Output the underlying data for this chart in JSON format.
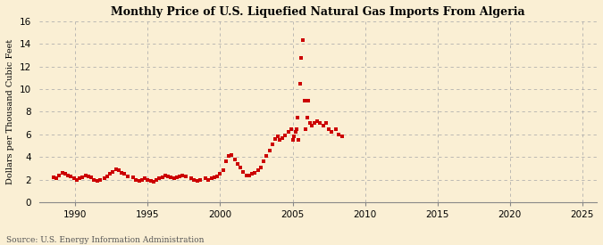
{
  "title": "Monthly Price of U.S. Liquefied Natural Gas Imports From Algeria",
  "ylabel": "Dollars per Thousand Cubic Feet",
  "source": "Source: U.S. Energy Information Administration",
  "background_color": "#faefd4",
  "dot_color": "#cc0000",
  "xlim": [
    1987.5,
    2026
  ],
  "ylim": [
    0,
    16
  ],
  "xticks": [
    1990,
    1995,
    2000,
    2005,
    2010,
    2015,
    2020,
    2025
  ],
  "yticks": [
    0,
    2,
    4,
    6,
    8,
    10,
    12,
    14,
    16
  ],
  "data_points": [
    [
      1988.5,
      2.2
    ],
    [
      1988.7,
      2.1
    ],
    [
      1988.9,
      2.4
    ],
    [
      1989.1,
      2.6
    ],
    [
      1989.3,
      2.5
    ],
    [
      1989.5,
      2.4
    ],
    [
      1989.7,
      2.3
    ],
    [
      1989.9,
      2.1
    ],
    [
      1990.1,
      2.0
    ],
    [
      1990.3,
      2.1
    ],
    [
      1990.5,
      2.2
    ],
    [
      1990.7,
      2.4
    ],
    [
      1990.9,
      2.3
    ],
    [
      1991.1,
      2.2
    ],
    [
      1991.3,
      2.0
    ],
    [
      1991.5,
      1.9
    ],
    [
      1991.7,
      2.0
    ],
    [
      1992.0,
      2.1
    ],
    [
      1992.2,
      2.3
    ],
    [
      1992.4,
      2.5
    ],
    [
      1992.6,
      2.7
    ],
    [
      1992.8,
      2.9
    ],
    [
      1993.0,
      2.8
    ],
    [
      1993.2,
      2.6
    ],
    [
      1993.4,
      2.5
    ],
    [
      1993.6,
      2.3
    ],
    [
      1994.0,
      2.2
    ],
    [
      1994.2,
      2.0
    ],
    [
      1994.4,
      1.9
    ],
    [
      1994.6,
      2.0
    ],
    [
      1994.8,
      2.1
    ],
    [
      1995.0,
      2.0
    ],
    [
      1995.2,
      1.9
    ],
    [
      1995.4,
      1.85
    ],
    [
      1995.6,
      2.0
    ],
    [
      1995.8,
      2.1
    ],
    [
      1996.0,
      2.2
    ],
    [
      1996.2,
      2.4
    ],
    [
      1996.4,
      2.3
    ],
    [
      1996.6,
      2.2
    ],
    [
      1996.8,
      2.1
    ],
    [
      1997.0,
      2.2
    ],
    [
      1997.2,
      2.3
    ],
    [
      1997.4,
      2.4
    ],
    [
      1997.6,
      2.3
    ],
    [
      1998.0,
      2.1
    ],
    [
      1998.2,
      2.0
    ],
    [
      1998.4,
      1.9
    ],
    [
      1998.6,
      2.0
    ],
    [
      1999.0,
      2.1
    ],
    [
      1999.2,
      2.0
    ],
    [
      1999.4,
      2.1
    ],
    [
      1999.6,
      2.2
    ],
    [
      1999.8,
      2.3
    ],
    [
      2000.0,
      2.5
    ],
    [
      2000.2,
      2.8
    ],
    [
      2000.4,
      3.6
    ],
    [
      2000.6,
      4.1
    ],
    [
      2000.8,
      4.2
    ],
    [
      2001.0,
      3.8
    ],
    [
      2001.2,
      3.4
    ],
    [
      2001.4,
      3.1
    ],
    [
      2001.6,
      2.7
    ],
    [
      2001.8,
      2.4
    ],
    [
      2002.0,
      2.4
    ],
    [
      2002.2,
      2.5
    ],
    [
      2002.4,
      2.6
    ],
    [
      2002.6,
      2.8
    ],
    [
      2002.8,
      3.1
    ],
    [
      2003.0,
      3.6
    ],
    [
      2003.2,
      4.1
    ],
    [
      2003.4,
      4.6
    ],
    [
      2003.6,
      5.1
    ],
    [
      2003.8,
      5.6
    ],
    [
      2004.0,
      5.8
    ],
    [
      2004.1,
      5.5
    ],
    [
      2004.3,
      5.7
    ],
    [
      2004.5,
      5.9
    ],
    [
      2004.7,
      6.2
    ],
    [
      2004.9,
      6.5
    ],
    [
      2005.0,
      5.5
    ],
    [
      2005.1,
      5.8
    ],
    [
      2005.2,
      6.2
    ],
    [
      2005.3,
      6.5
    ],
    [
      2005.35,
      7.5
    ],
    [
      2005.4,
      5.5
    ],
    [
      2005.5,
      10.5
    ],
    [
      2005.6,
      12.8
    ],
    [
      2005.7,
      14.3
    ],
    [
      2005.8,
      9.0
    ],
    [
      2005.9,
      6.5
    ],
    [
      2006.0,
      7.5
    ],
    [
      2006.1,
      9.0
    ],
    [
      2006.2,
      7.0
    ],
    [
      2006.3,
      6.8
    ],
    [
      2006.5,
      7.0
    ],
    [
      2006.7,
      7.2
    ],
    [
      2006.9,
      7.0
    ],
    [
      2007.1,
      6.8
    ],
    [
      2007.3,
      7.0
    ],
    [
      2007.5,
      6.5
    ],
    [
      2007.7,
      6.2
    ],
    [
      2008.0,
      6.5
    ],
    [
      2008.2,
      6.0
    ],
    [
      2008.4,
      5.8
    ]
  ]
}
